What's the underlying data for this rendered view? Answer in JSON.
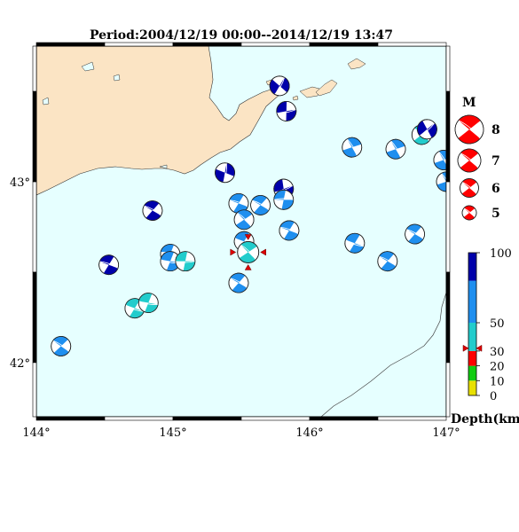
{
  "title": "Period:2004/12/19 00:00--2014/12/19 13:47",
  "map": {
    "lon_range": [
      144,
      147
    ],
    "lat_range": [
      41.7,
      43.75
    ],
    "lon_ticks": [
      "144°",
      "145°",
      "146°",
      "147°"
    ],
    "lat_ticks": [
      "42°",
      "43°"
    ],
    "land_color": "#fbe4c4",
    "sea_color": "#e6ffff"
  },
  "events": [
    {
      "lon": 144.18,
      "lat": 42.09,
      "depth": 60,
      "angle": 35
    },
    {
      "lon": 144.53,
      "lat": 42.54,
      "depth": 90,
      "angle": 20
    },
    {
      "lon": 144.72,
      "lat": 42.3,
      "depth": 45,
      "angle": 200
    },
    {
      "lon": 144.82,
      "lat": 42.33,
      "depth": 45,
      "angle": 190
    },
    {
      "lon": 144.85,
      "lat": 42.84,
      "depth": 95,
      "angle": 30
    },
    {
      "lon": 144.98,
      "lat": 42.6,
      "depth": 60,
      "angle": 10
    },
    {
      "lon": 144.98,
      "lat": 42.56,
      "depth": 60,
      "angle": 190
    },
    {
      "lon": 145.09,
      "lat": 42.56,
      "depth": 45,
      "angle": 180
    },
    {
      "lon": 145.38,
      "lat": 43.05,
      "depth": 90,
      "angle": 100
    },
    {
      "lon": 145.48,
      "lat": 42.88,
      "depth": 60,
      "angle": 20
    },
    {
      "lon": 145.52,
      "lat": 42.79,
      "depth": 60,
      "angle": 45
    },
    {
      "lon": 145.48,
      "lat": 42.44,
      "depth": 60,
      "angle": 30
    },
    {
      "lon": 145.52,
      "lat": 42.67,
      "depth": 60,
      "angle": 200
    },
    {
      "lon": 145.64,
      "lat": 42.87,
      "depth": 60,
      "angle": 30
    },
    {
      "lon": 145.78,
      "lat": 43.53,
      "depth": 95,
      "angle": 120
    },
    {
      "lon": 145.83,
      "lat": 43.39,
      "depth": 95,
      "angle": 170
    },
    {
      "lon": 145.81,
      "lat": 42.96,
      "depth": 95,
      "angle": 160
    },
    {
      "lon": 145.81,
      "lat": 42.9,
      "depth": 60,
      "angle": 0
    },
    {
      "lon": 145.85,
      "lat": 42.73,
      "depth": 60,
      "angle": 20
    },
    {
      "lon": 146.31,
      "lat": 43.19,
      "depth": 60,
      "angle": 60
    },
    {
      "lon": 146.33,
      "lat": 42.66,
      "depth": 60,
      "angle": 200
    },
    {
      "lon": 146.57,
      "lat": 42.56,
      "depth": 60,
      "angle": 30
    },
    {
      "lon": 146.63,
      "lat": 43.18,
      "depth": 60,
      "angle": 60
    },
    {
      "lon": 146.77,
      "lat": 42.71,
      "depth": 60,
      "angle": 30
    },
    {
      "lon": 146.82,
      "lat": 43.26,
      "depth": 45,
      "angle": 40
    },
    {
      "lon": 146.86,
      "lat": 43.29,
      "depth": 95,
      "angle": 140
    },
    {
      "lon": 146.98,
      "lat": 43.12,
      "depth": 60,
      "angle": 60
    },
    {
      "lon": 147.0,
      "lat": 43.0,
      "depth": 60,
      "angle": 60
    }
  ],
  "target": {
    "lon": 145.55,
    "lat": 42.61,
    "depth": 32,
    "angle": 45
  },
  "legend": {
    "title": "M",
    "magnitudes": [
      "8",
      "7",
      "6",
      "5"
    ]
  },
  "depth_scale": {
    "label": "Depth(km)",
    "ticks": [
      "100",
      "50",
      "30",
      "20",
      "10",
      "0"
    ],
    "colors": {
      "d0_10": "#e8e000",
      "d10_20": "#11cc11",
      "d20_30": "#ff0000",
      "d30_50": "#22cccc",
      "d50_80": "#1f8fef",
      "d80_100": "#0000aa"
    }
  }
}
